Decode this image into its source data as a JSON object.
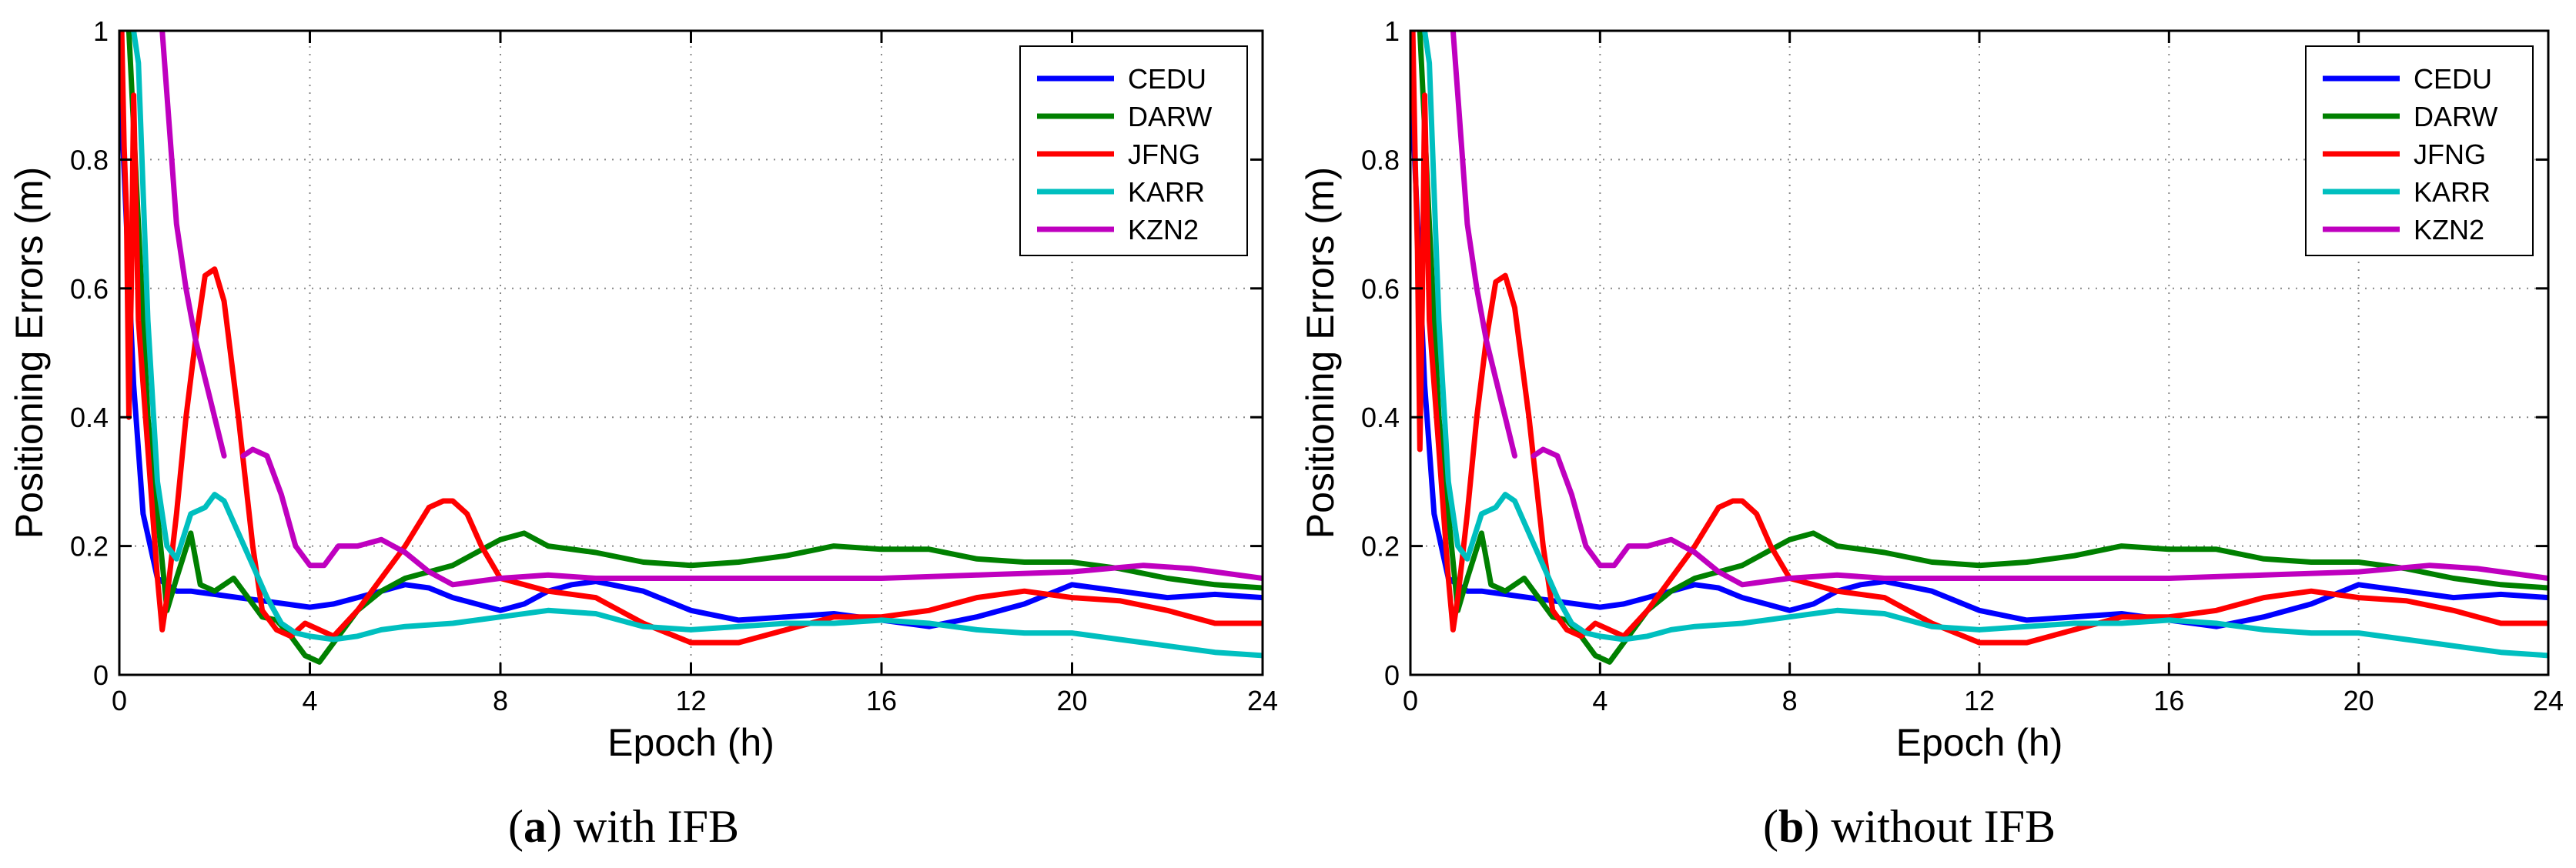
{
  "figure": {
    "captions": [
      {
        "letter": "a",
        "text": "with IFB"
      },
      {
        "letter": "b",
        "text": "without IFB"
      }
    ]
  },
  "chart_data": [
    {
      "type": "line",
      "title": "",
      "xlabel": "Epoch (h)",
      "ylabel": "Positioning Errors (m)",
      "xlim": [
        0,
        24
      ],
      "ylim": [
        0,
        1
      ],
      "xticks": [
        0,
        4,
        8,
        12,
        16,
        20,
        24
      ],
      "yticks": [
        0,
        0.2,
        0.4,
        0.6,
        0.8,
        1
      ],
      "ytick_labels": [
        "0",
        "0.2",
        "0.4",
        "0.6",
        "0.8",
        "1"
      ],
      "grid": true,
      "legend": "top-right",
      "series": [
        {
          "name": "CEDU",
          "color": "#0000ff",
          "x": [
            0,
            0.3,
            0.5,
            0.8,
            1.0,
            1.2,
            1.5,
            2.0,
            2.5,
            3.0,
            3.5,
            4.0,
            4.5,
            5.0,
            5.5,
            6.0,
            6.5,
            7.0,
            7.5,
            8.0,
            8.5,
            9.0,
            9.5,
            10.0,
            11.0,
            12.0,
            13.0,
            14.0,
            15.0,
            16.0,
            17.0,
            18.0,
            19.0,
            20.0,
            21.0,
            22.0,
            23.0,
            24.0
          ],
          "y": [
            0.95,
            0.45,
            0.25,
            0.15,
            0.14,
            0.13,
            0.13,
            0.125,
            0.12,
            0.115,
            0.11,
            0.105,
            0.11,
            0.12,
            0.13,
            0.14,
            0.135,
            0.12,
            0.11,
            0.1,
            0.11,
            0.13,
            0.14,
            0.145,
            0.13,
            0.1,
            0.085,
            0.09,
            0.095,
            0.085,
            0.075,
            0.09,
            0.11,
            0.14,
            0.13,
            0.12,
            0.125,
            0.12
          ]
        },
        {
          "name": "DARW",
          "color": "#008000",
          "x": [
            0.2,
            0.4,
            0.6,
            0.8,
            1.0,
            1.2,
            1.5,
            1.7,
            2.0,
            2.4,
            2.7,
            3.0,
            3.3,
            3.6,
            3.9,
            4.2,
            4.6,
            5.0,
            5.5,
            6.0,
            7.0,
            8.0,
            8.5,
            9.0,
            10.0,
            11.0,
            12.0,
            13.0,
            14.0,
            15.0,
            16.0,
            17.0,
            18.0,
            19.0,
            20.0,
            21.0,
            22.0,
            23.0,
            24.0
          ],
          "y": [
            1.0,
            0.7,
            0.4,
            0.25,
            0.1,
            0.15,
            0.22,
            0.14,
            0.13,
            0.15,
            0.12,
            0.09,
            0.085,
            0.06,
            0.03,
            0.02,
            0.06,
            0.1,
            0.13,
            0.15,
            0.17,
            0.21,
            0.22,
            0.2,
            0.19,
            0.175,
            0.17,
            0.175,
            0.185,
            0.2,
            0.195,
            0.195,
            0.18,
            0.175,
            0.175,
            0.165,
            0.15,
            0.14,
            0.135
          ]
        },
        {
          "name": "JFNG",
          "color": "#ff0000",
          "x": [
            0.05,
            0.1,
            0.15,
            0.2,
            0.25,
            0.3,
            0.4,
            0.6,
            0.8,
            0.9,
            1.0,
            1.2,
            1.4,
            1.6,
            1.8,
            2.0,
            2.2,
            2.5,
            2.8,
            3.0,
            3.3,
            3.6,
            3.9,
            4.2,
            4.5,
            5.0,
            5.5,
            6.0,
            6.5,
            6.8,
            7.0,
            7.3,
            7.6,
            8.0,
            8.5,
            9.0,
            10.0,
            11.0,
            12.0,
            13.0,
            14.0,
            15.0,
            16.0,
            17.0,
            18.0,
            19.0,
            20.0,
            21.0,
            22.0,
            23.0,
            24.0
          ],
          "y": [
            1.0,
            0.82,
            0.72,
            0.4,
            0.6,
            0.9,
            0.55,
            0.35,
            0.15,
            0.07,
            0.12,
            0.25,
            0.4,
            0.52,
            0.62,
            0.63,
            0.58,
            0.4,
            0.2,
            0.1,
            0.07,
            0.06,
            0.08,
            0.07,
            0.06,
            0.1,
            0.15,
            0.2,
            0.26,
            0.27,
            0.27,
            0.25,
            0.2,
            0.15,
            0.14,
            0.13,
            0.12,
            0.08,
            0.05,
            0.05,
            0.07,
            0.09,
            0.09,
            0.1,
            0.12,
            0.13,
            0.12,
            0.115,
            0.1,
            0.08,
            0.08
          ]
        },
        {
          "name": "KARR",
          "color": "#00bfbf",
          "x": [
            0.3,
            0.4,
            0.6,
            0.8,
            1.0,
            1.2,
            1.5,
            1.8,
            2.0,
            2.2,
            2.5,
            2.8,
            3.1,
            3.4,
            3.7,
            4.0,
            4.5,
            5.0,
            5.5,
            6.0,
            7.0,
            8.0,
            9.0,
            10.0,
            11.0,
            12.0,
            13.0,
            14.0,
            15.0,
            16.0,
            17.0,
            18.0,
            19.0,
            20.0,
            21.0,
            22.0,
            23.0,
            24.0
          ],
          "y": [
            1.0,
            0.95,
            0.55,
            0.3,
            0.2,
            0.18,
            0.25,
            0.26,
            0.28,
            0.27,
            0.22,
            0.17,
            0.12,
            0.08,
            0.065,
            0.06,
            0.055,
            0.06,
            0.07,
            0.075,
            0.08,
            0.09,
            0.1,
            0.095,
            0.075,
            0.07,
            0.075,
            0.08,
            0.08,
            0.085,
            0.08,
            0.07,
            0.065,
            0.065,
            0.055,
            0.045,
            0.035,
            0.03
          ]
        },
        {
          "name": "KZN2",
          "color": "#bf00bf",
          "x": [
            0.9,
            1.0,
            1.2,
            1.4,
            1.6,
            1.8,
            2.0,
            2.2
          ],
          "y": [
            1.0,
            0.9,
            0.7,
            0.6,
            0.52,
            0.46,
            0.4,
            0.34
          ],
          "x2": [
            2.6,
            2.8,
            3.1,
            3.4,
            3.7,
            4.0,
            4.3,
            4.6,
            5.0,
            5.5,
            6.0,
            6.5,
            7.0,
            7.5,
            8.0,
            9.0,
            10.0,
            12.0,
            14.0,
            16.0,
            18.0,
            20.0,
            21.5,
            22.5,
            24.0
          ],
          "y2": [
            0.34,
            0.35,
            0.34,
            0.28,
            0.2,
            0.17,
            0.17,
            0.2,
            0.2,
            0.21,
            0.19,
            0.16,
            0.14,
            0.145,
            0.15,
            0.155,
            0.15,
            0.15,
            0.15,
            0.15,
            0.155,
            0.16,
            0.17,
            0.165,
            0.15
          ]
        }
      ]
    },
    {
      "type": "line",
      "title": "",
      "xlabel": "Epoch (h)",
      "ylabel": "Positioning Errors (m)",
      "xlim": [
        0,
        24
      ],
      "ylim": [
        0,
        1
      ],
      "xticks": [
        0,
        4,
        8,
        12,
        16,
        20,
        24
      ],
      "yticks": [
        0,
        0.2,
        0.4,
        0.6,
        0.8,
        1
      ],
      "ytick_labels": [
        "0",
        "0.2",
        "0.4",
        "0.6",
        "0.8",
        "1"
      ],
      "grid": true,
      "legend": "top-right",
      "series": [
        {
          "name": "CEDU",
          "color": "#0000ff",
          "x": [
            0,
            0.3,
            0.5,
            0.8,
            1.0,
            1.2,
            1.5,
            2.0,
            2.5,
            3.0,
            3.5,
            4.0,
            4.5,
            5.0,
            5.5,
            6.0,
            6.5,
            7.0,
            7.5,
            8.0,
            8.5,
            9.0,
            9.5,
            10.0,
            11.0,
            12.0,
            13.0,
            14.0,
            15.0,
            16.0,
            17.0,
            18.0,
            19.0,
            20.0,
            21.0,
            22.0,
            23.0,
            24.0
          ],
          "y": [
            0.95,
            0.45,
            0.25,
            0.15,
            0.14,
            0.13,
            0.13,
            0.125,
            0.12,
            0.115,
            0.11,
            0.105,
            0.11,
            0.12,
            0.13,
            0.14,
            0.135,
            0.12,
            0.11,
            0.1,
            0.11,
            0.13,
            0.14,
            0.145,
            0.13,
            0.1,
            0.085,
            0.09,
            0.095,
            0.085,
            0.075,
            0.09,
            0.11,
            0.14,
            0.13,
            0.12,
            0.125,
            0.12
          ]
        },
        {
          "name": "DARW",
          "color": "#008000",
          "x": [
            0.2,
            0.4,
            0.6,
            0.8,
            1.0,
            1.2,
            1.5,
            1.7,
            2.0,
            2.4,
            2.7,
            3.0,
            3.3,
            3.6,
            3.9,
            4.2,
            4.6,
            5.0,
            5.5,
            6.0,
            7.0,
            8.0,
            8.5,
            9.0,
            10.0,
            11.0,
            12.0,
            13.0,
            14.0,
            15.0,
            16.0,
            17.0,
            18.0,
            19.0,
            20.0,
            21.0,
            22.0,
            23.0,
            24.0
          ],
          "y": [
            1.0,
            0.7,
            0.4,
            0.25,
            0.1,
            0.15,
            0.22,
            0.14,
            0.13,
            0.15,
            0.12,
            0.09,
            0.085,
            0.06,
            0.03,
            0.02,
            0.06,
            0.1,
            0.13,
            0.15,
            0.17,
            0.21,
            0.22,
            0.2,
            0.19,
            0.175,
            0.17,
            0.175,
            0.185,
            0.2,
            0.195,
            0.195,
            0.18,
            0.175,
            0.175,
            0.165,
            0.15,
            0.14,
            0.135
          ]
        },
        {
          "name": "JFNG",
          "color": "#ff0000",
          "x": [
            0.05,
            0.1,
            0.15,
            0.2,
            0.25,
            0.3,
            0.4,
            0.6,
            0.8,
            0.9,
            1.0,
            1.2,
            1.4,
            1.6,
            1.8,
            2.0,
            2.2,
            2.5,
            2.8,
            3.0,
            3.3,
            3.6,
            3.9,
            4.2,
            4.5,
            5.0,
            5.5,
            6.0,
            6.5,
            6.8,
            7.0,
            7.3,
            7.6,
            8.0,
            8.5,
            9.0,
            10.0,
            11.0,
            12.0,
            13.0,
            14.0,
            15.0,
            16.0,
            17.0,
            18.0,
            19.0,
            20.0,
            21.0,
            22.0,
            23.0,
            24.0
          ],
          "y": [
            1.0,
            0.8,
            0.66,
            0.35,
            0.58,
            0.9,
            0.55,
            0.35,
            0.15,
            0.07,
            0.12,
            0.25,
            0.4,
            0.52,
            0.61,
            0.62,
            0.57,
            0.4,
            0.2,
            0.1,
            0.07,
            0.06,
            0.08,
            0.07,
            0.06,
            0.1,
            0.15,
            0.2,
            0.26,
            0.27,
            0.27,
            0.25,
            0.2,
            0.15,
            0.14,
            0.13,
            0.12,
            0.08,
            0.05,
            0.05,
            0.07,
            0.09,
            0.09,
            0.1,
            0.12,
            0.13,
            0.12,
            0.115,
            0.1,
            0.08,
            0.08
          ]
        },
        {
          "name": "KARR",
          "color": "#00bfbf",
          "x": [
            0.3,
            0.4,
            0.6,
            0.8,
            1.0,
            1.2,
            1.5,
            1.8,
            2.0,
            2.2,
            2.5,
            2.8,
            3.1,
            3.4,
            3.7,
            4.0,
            4.5,
            5.0,
            5.5,
            6.0,
            7.0,
            8.0,
            9.0,
            10.0,
            11.0,
            12.0,
            13.0,
            14.0,
            15.0,
            16.0,
            17.0,
            18.0,
            19.0,
            20.0,
            21.0,
            22.0,
            23.0,
            24.0
          ],
          "y": [
            1.0,
            0.95,
            0.55,
            0.3,
            0.2,
            0.18,
            0.25,
            0.26,
            0.28,
            0.27,
            0.22,
            0.17,
            0.12,
            0.08,
            0.065,
            0.06,
            0.055,
            0.06,
            0.07,
            0.075,
            0.08,
            0.09,
            0.1,
            0.095,
            0.075,
            0.07,
            0.075,
            0.08,
            0.08,
            0.085,
            0.08,
            0.07,
            0.065,
            0.065,
            0.055,
            0.045,
            0.035,
            0.03
          ]
        },
        {
          "name": "KZN2",
          "color": "#bf00bf",
          "x": [
            0.9,
            1.0,
            1.2,
            1.4,
            1.6,
            1.8,
            2.0,
            2.2
          ],
          "y": [
            1.0,
            0.9,
            0.7,
            0.6,
            0.52,
            0.46,
            0.4,
            0.34
          ],
          "x2": [
            2.6,
            2.8,
            3.1,
            3.4,
            3.7,
            4.0,
            4.3,
            4.6,
            5.0,
            5.5,
            6.0,
            6.5,
            7.0,
            7.5,
            8.0,
            9.0,
            10.0,
            12.0,
            14.0,
            16.0,
            18.0,
            20.0,
            21.5,
            22.5,
            24.0
          ],
          "y2": [
            0.34,
            0.35,
            0.34,
            0.28,
            0.2,
            0.17,
            0.17,
            0.2,
            0.2,
            0.21,
            0.19,
            0.16,
            0.14,
            0.145,
            0.15,
            0.155,
            0.15,
            0.15,
            0.15,
            0.15,
            0.155,
            0.16,
            0.17,
            0.165,
            0.15
          ]
        }
      ]
    }
  ]
}
